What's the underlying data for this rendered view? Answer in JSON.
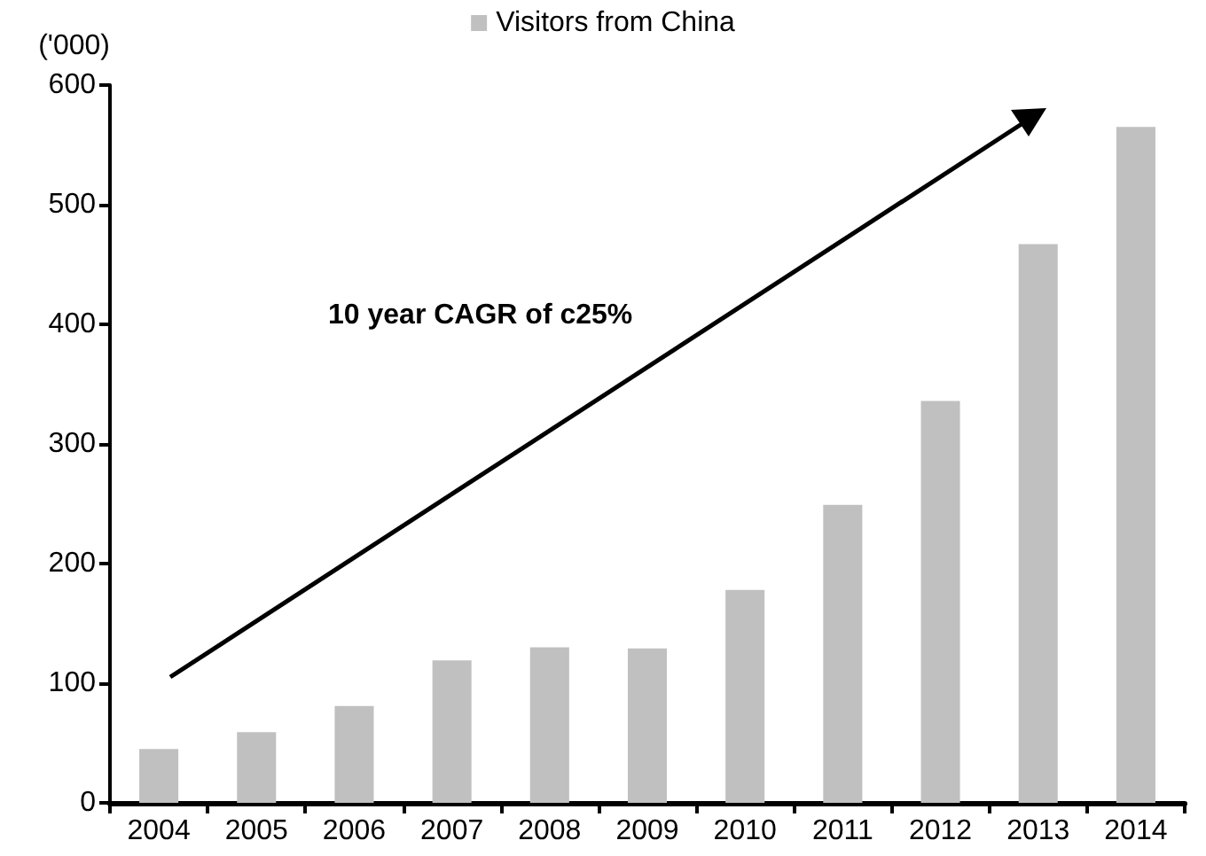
{
  "chart_data": {
    "type": "bar",
    "ylabel": "('000)",
    "categories": [
      "2004",
      "2005",
      "2006",
      "2007",
      "2008",
      "2009",
      "2010",
      "2011",
      "2012",
      "2013",
      "2014"
    ],
    "series": [
      {
        "name": "Visitors from China",
        "color": "#c0c0c0",
        "values": [
          45,
          59,
          81,
          119,
          130,
          129,
          178,
          249,
          336,
          467,
          565
        ]
      }
    ],
    "ylim": [
      0,
      600
    ],
    "yticks": [
      0,
      100,
      200,
      300,
      400,
      500,
      600
    ],
    "grid": false,
    "legend": "top",
    "annotations": [
      "10 year CAGR of c25%"
    ]
  }
}
